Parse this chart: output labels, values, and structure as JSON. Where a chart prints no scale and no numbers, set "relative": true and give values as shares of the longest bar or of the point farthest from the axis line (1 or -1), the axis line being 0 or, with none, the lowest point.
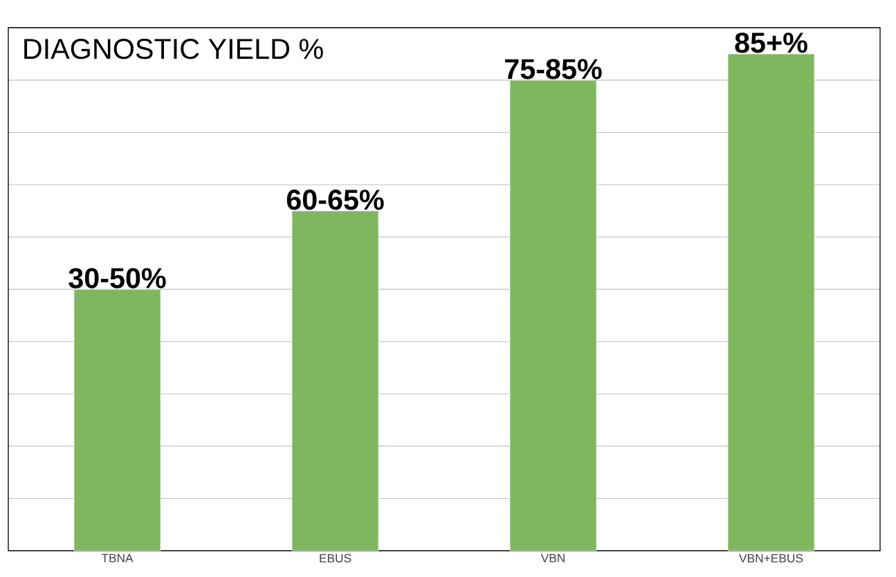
{
  "chart_data": {
    "type": "bar",
    "title": "DIAGNOSTIC YIELD %",
    "categories": [
      "TBNA",
      "EBUS",
      "VBN",
      "VBN+EBUS"
    ],
    "values": [
      0.526,
      0.684,
      0.947,
      1
    ],
    "annotations": [
      "30-50%",
      "60-65%",
      "75-85%",
      "85+%"
    ],
    "color": "#7fb75f",
    "relative": true,
    "grid": "y"
  }
}
